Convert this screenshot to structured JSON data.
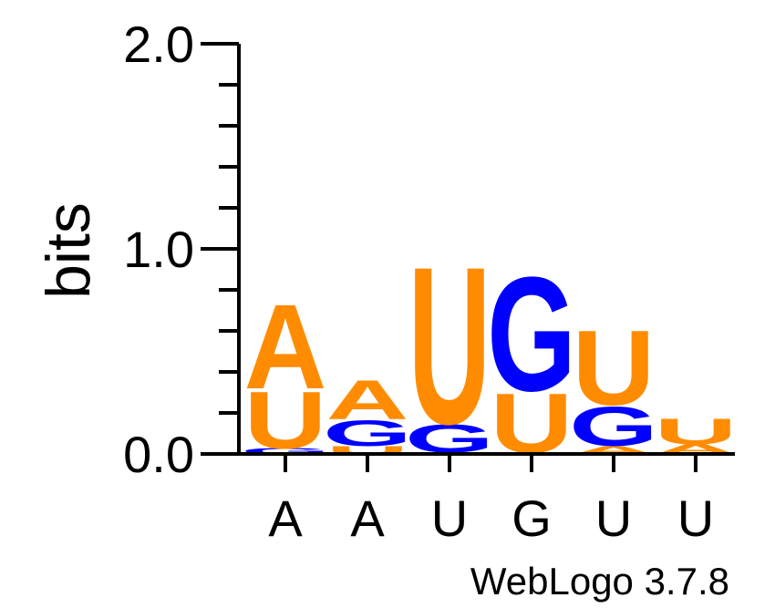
{
  "chart_data": {
    "type": "sequence-logo",
    "ylabel": "bits",
    "ylim": [
      0,
      2.0
    ],
    "y_ticks": [
      {
        "value": 0.0,
        "label": "0.0"
      },
      {
        "value": 1.0,
        "label": "1.0"
      },
      {
        "value": 2.0,
        "label": "2.0"
      }
    ],
    "x_tick_labels": [
      "A",
      "A",
      "U",
      "G",
      "U",
      "U"
    ],
    "footer": "WebLogo 3.7.8",
    "colors": {
      "A": "#FF8C00",
      "U": "#FF8C00",
      "G": "#0000FF",
      "C": "#0000FF"
    },
    "positions": [
      {
        "label": "A",
        "stack": [
          {
            "letter": "G",
            "bits": 0.03
          },
          {
            "letter": "U",
            "bits": 0.29
          },
          {
            "letter": "A",
            "bits": 0.43
          }
        ]
      },
      {
        "label": "A",
        "stack": [
          {
            "letter": "U",
            "bits": 0.04
          },
          {
            "letter": "G",
            "bits": 0.13
          },
          {
            "letter": "A",
            "bits": 0.2
          }
        ]
      },
      {
        "label": "U",
        "stack": [
          {
            "letter": "A",
            "bits": 0.01
          },
          {
            "letter": "G",
            "bits": 0.14
          },
          {
            "letter": "U",
            "bits": 0.8
          }
        ]
      },
      {
        "label": "G",
        "stack": [
          {
            "letter": "A",
            "bits": 0.01
          },
          {
            "letter": "U",
            "bits": 0.3
          },
          {
            "letter": "G",
            "bits": 0.58
          }
        ]
      },
      {
        "label": "U",
        "stack": [
          {
            "letter": "A",
            "bits": 0.04
          },
          {
            "letter": "G",
            "bits": 0.2
          },
          {
            "letter": "U",
            "bits": 0.38
          }
        ]
      },
      {
        "label": "U",
        "stack": [
          {
            "letter": "A",
            "bits": 0.05
          },
          {
            "letter": "U",
            "bits": 0.13
          }
        ]
      }
    ]
  }
}
